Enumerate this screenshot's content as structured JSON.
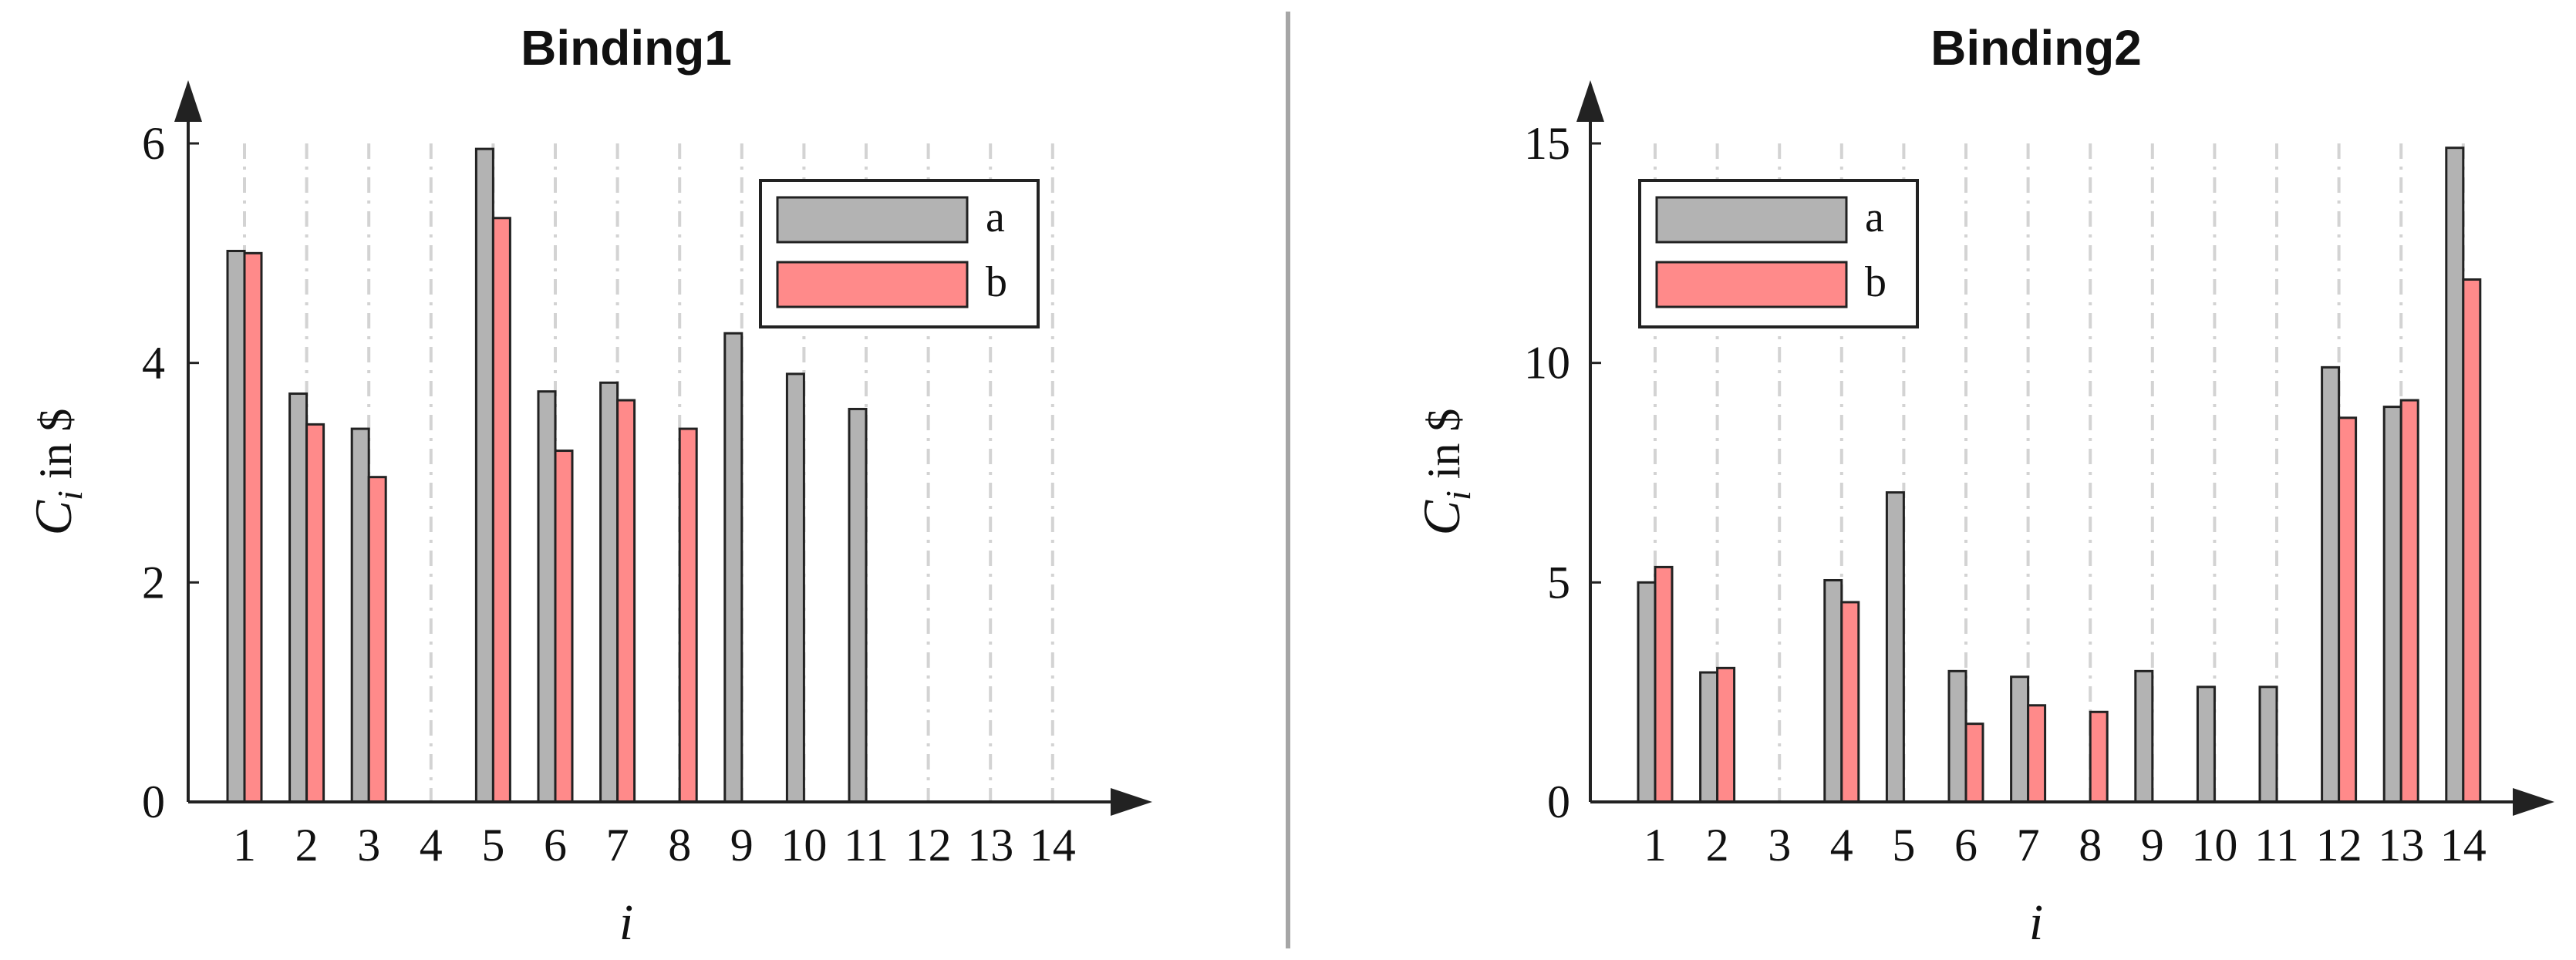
{
  "chart_data": [
    {
      "type": "bar",
      "title": "Binding1",
      "xlabel": "i",
      "ylabel": {
        "base": "C",
        "sub": "i",
        "rest": " in $"
      },
      "categories": [
        "1",
        "2",
        "3",
        "4",
        "5",
        "6",
        "7",
        "8",
        "9",
        "10",
        "11",
        "12",
        "13",
        "14"
      ],
      "series": [
        {
          "name": "a",
          "color": "#b3b3b3",
          "values": [
            5.02,
            3.72,
            3.4,
            null,
            5.95,
            3.74,
            3.82,
            null,
            4.27,
            3.9,
            3.58,
            null,
            null,
            null
          ]
        },
        {
          "name": "b",
          "color": "#ff8a8a",
          "values": [
            5.0,
            3.44,
            2.96,
            null,
            5.32,
            3.2,
            3.66,
            3.4,
            null,
            null,
            null,
            null,
            null,
            null
          ]
        }
      ],
      "yticks": [
        "0",
        "2",
        "4",
        "6"
      ],
      "ylim": [
        0,
        6
      ],
      "grid": "vertical dash-dot",
      "legend_position": "top-right"
    },
    {
      "type": "bar",
      "title": "Binding2",
      "xlabel": "i",
      "ylabel": {
        "base": "C",
        "sub": "i",
        "rest": " in $"
      },
      "categories": [
        "1",
        "2",
        "3",
        "4",
        "5",
        "6",
        "7",
        "8",
        "9",
        "10",
        "11",
        "12",
        "13",
        "14"
      ],
      "series": [
        {
          "name": "a",
          "color": "#b3b3b3",
          "values": [
            5.0,
            2.95,
            null,
            5.05,
            7.05,
            2.98,
            2.85,
            null,
            2.98,
            2.62,
            2.62,
            9.9,
            9.0,
            14.9
          ]
        },
        {
          "name": "b",
          "color": "#ff8a8a",
          "values": [
            5.35,
            3.05,
            null,
            4.55,
            null,
            1.78,
            2.2,
            2.05,
            null,
            null,
            null,
            8.75,
            9.15,
            11.9
          ]
        }
      ],
      "yticks": [
        "0",
        "5",
        "10",
        "15"
      ],
      "ylim": [
        0,
        15
      ],
      "grid": "vertical dash-dot",
      "legend_position": "top-left"
    }
  ]
}
